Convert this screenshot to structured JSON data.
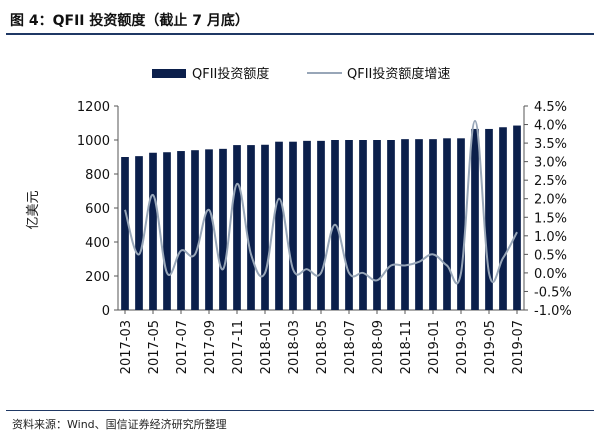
{
  "figure_title": "图 4：QFII 投资额度（截止 7 月底）",
  "source_note": "资料来源：Wind、国信证券经济研究所整理",
  "colors": {
    "bar": "#0b1f4b",
    "line": "#98a6b8",
    "rule": "#1f3864"
  },
  "chart_data": {
    "type": "bar",
    "categories": [
      "2017-03",
      "2017-04",
      "2017-05",
      "2017-06",
      "2017-07",
      "2017-08",
      "2017-09",
      "2017-10",
      "2017-11",
      "2017-12",
      "2018-01",
      "2018-02",
      "2018-03",
      "2018-04",
      "2018-05",
      "2018-06",
      "2018-07",
      "2018-08",
      "2018-09",
      "2018-10",
      "2018-11",
      "2018-12",
      "2019-01",
      "2019-02",
      "2019-03",
      "2019-04",
      "2019-05",
      "2019-06",
      "2019-07"
    ],
    "xtick_labels": [
      "2017-03",
      "2017-05",
      "2017-07",
      "2017-09",
      "2017-11",
      "2018-01",
      "2018-03",
      "2018-05",
      "2018-07",
      "2018-09",
      "2018-11",
      "2019-01",
      "2019-03",
      "2019-05",
      "2019-07"
    ],
    "ylabel_left": "亿美元",
    "ylim_left": [
      0,
      1200
    ],
    "yticks_left": [
      "0",
      "200",
      "400",
      "600",
      "800",
      "1000",
      "1200"
    ],
    "ylim_right": [
      -1.0,
      4.5
    ],
    "yticks_right": [
      "-1.0%",
      "-0.5%",
      "0.0%",
      "0.5%",
      "1.0%",
      "1.5%",
      "2.0%",
      "2.5%",
      "3.0%",
      "3.5%",
      "4.0%",
      "4.5%"
    ],
    "series": [
      {
        "name": "QFII投资额度",
        "kind": "bar",
        "axis": "left",
        "values": [
          900,
          905,
          925,
          928,
          935,
          940,
          945,
          948,
          970,
          970,
          972,
          990,
          990,
          995,
          995,
          1000,
          1000,
          1000,
          1000,
          1000,
          1005,
          1005,
          1005,
          1010,
          1010,
          1065,
          1065,
          1075,
          1085
        ]
      },
      {
        "name": "QFII投资额度增速",
        "kind": "line",
        "axis": "right",
        "values": [
          1.7,
          0.5,
          2.1,
          0.0,
          0.6,
          0.5,
          1.7,
          0.1,
          2.4,
          0.5,
          0.0,
          2.0,
          0.1,
          0.1,
          0.0,
          1.3,
          0.0,
          0.0,
          -0.2,
          0.2,
          0.2,
          0.3,
          0.5,
          0.2,
          0.0,
          4.1,
          0.0,
          0.4,
          1.1
        ]
      }
    ],
    "legend_position": "top-center",
    "grid": false
  }
}
